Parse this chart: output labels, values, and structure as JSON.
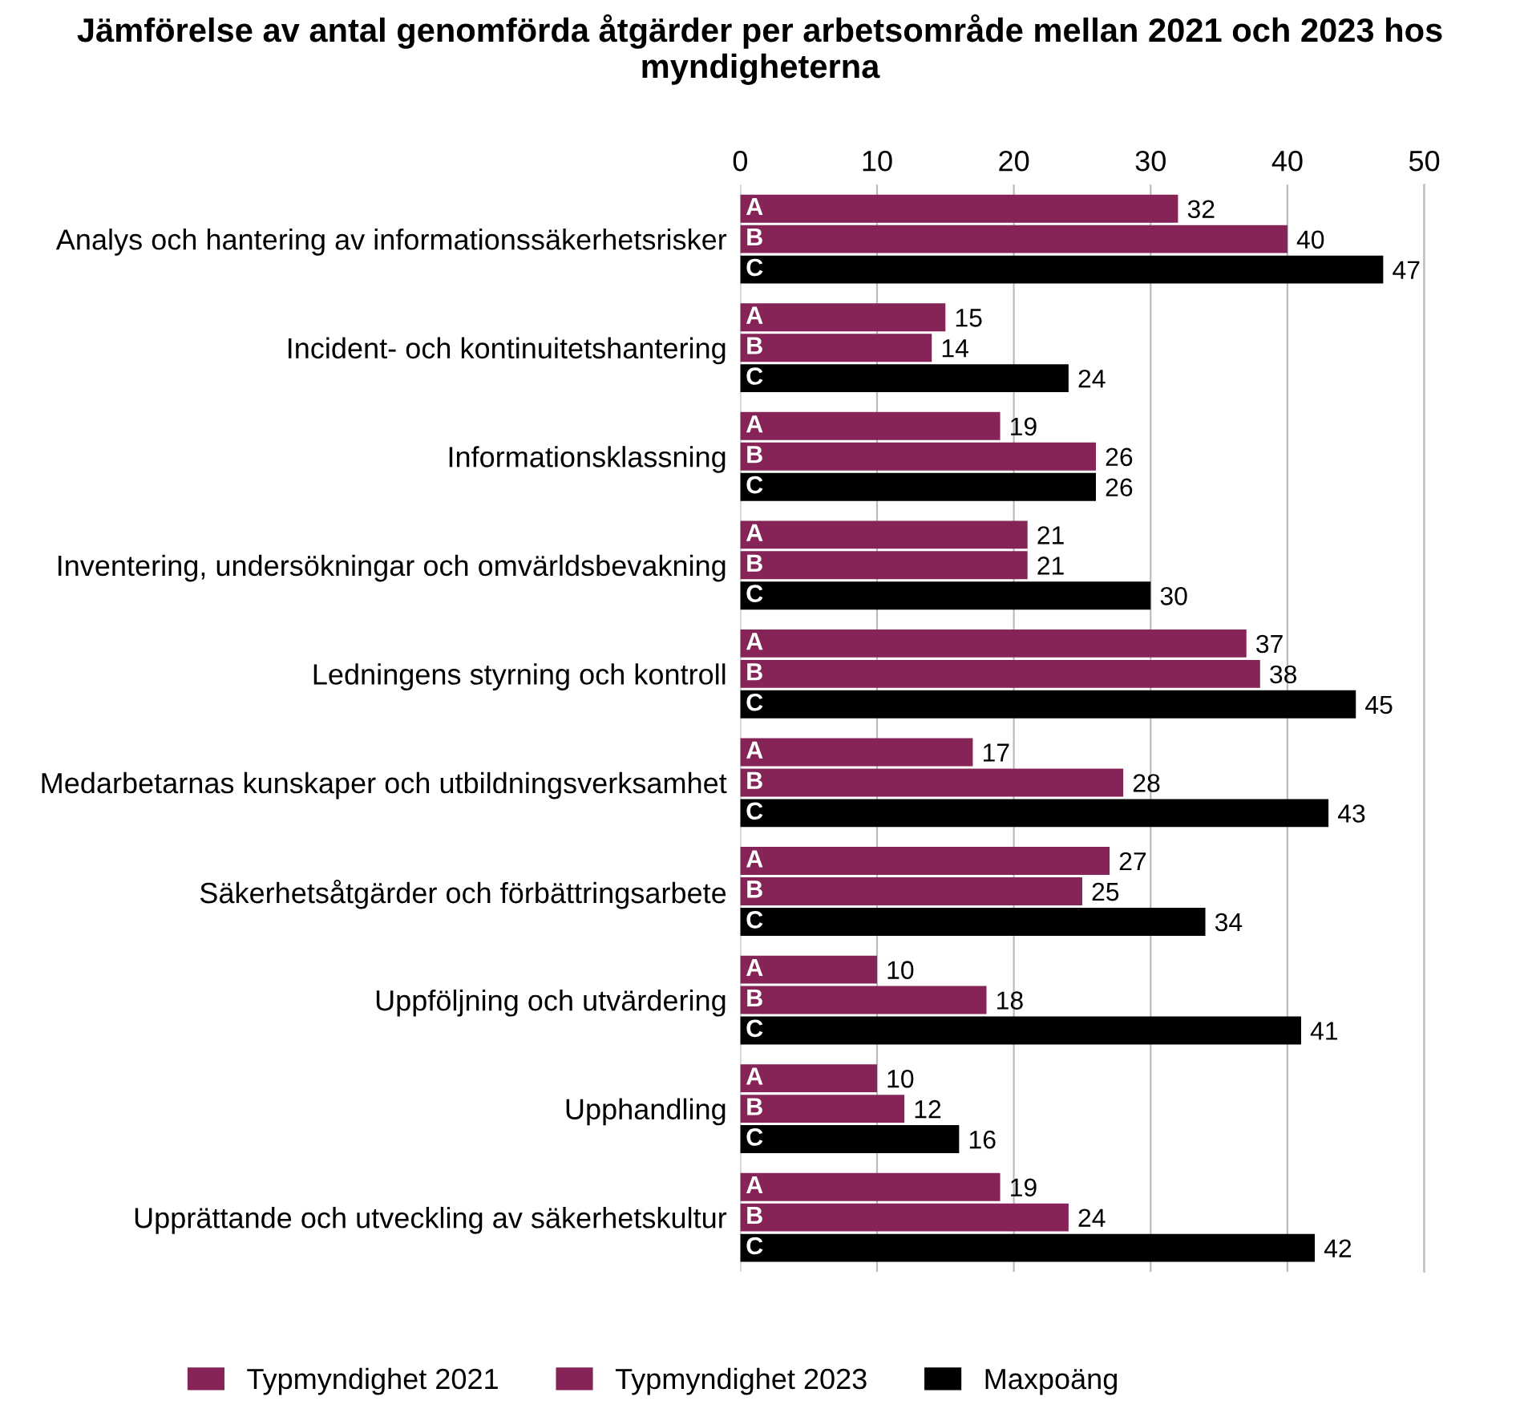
{
  "chart_data": {
    "type": "bar",
    "orientation": "horizontal",
    "title": "Jämförelse av antal genomförda åtgärder per arbetsområde mellan 2021 och 2023 hos myndigheterna",
    "categories": [
      "Analys och hantering av informationssäkerhetsrisker",
      "Incident- och kontinuitetshantering",
      "Informationsklassning",
      "Inventering, undersökningar och omvärldsbevakning",
      "Ledningens styrning och kontroll",
      "Medarbetarnas kunskaper och utbildningsverksamhet",
      "Säkerhetsåtgärder och förbättringsarbete",
      "Uppföljning och utvärdering",
      "Upphandling",
      "Upprättande och utveckling av säkerhetskultur"
    ],
    "series": [
      {
        "name": "Typmyndighet 2021",
        "color": "#862457",
        "values": [
          32,
          15,
          19,
          21,
          37,
          17,
          27,
          10,
          10,
          19
        ]
      },
      {
        "name": "Typmyndighet 2023",
        "color": "#862457",
        "values": [
          40,
          14,
          26,
          21,
          38,
          28,
          25,
          18,
          12,
          24
        ]
      },
      {
        "name": "Maxpoäng",
        "color": "#000000",
        "values": [
          47,
          24,
          26,
          30,
          45,
          43,
          34,
          41,
          16,
          42
        ]
      }
    ],
    "annotations": [
      "A",
      "B",
      "C"
    ],
    "xlim": [
      0,
      50
    ],
    "xticks": [
      0,
      10,
      20,
      30,
      40,
      50
    ],
    "grid": "x",
    "legend": "bottom",
    "data_labels": true
  }
}
